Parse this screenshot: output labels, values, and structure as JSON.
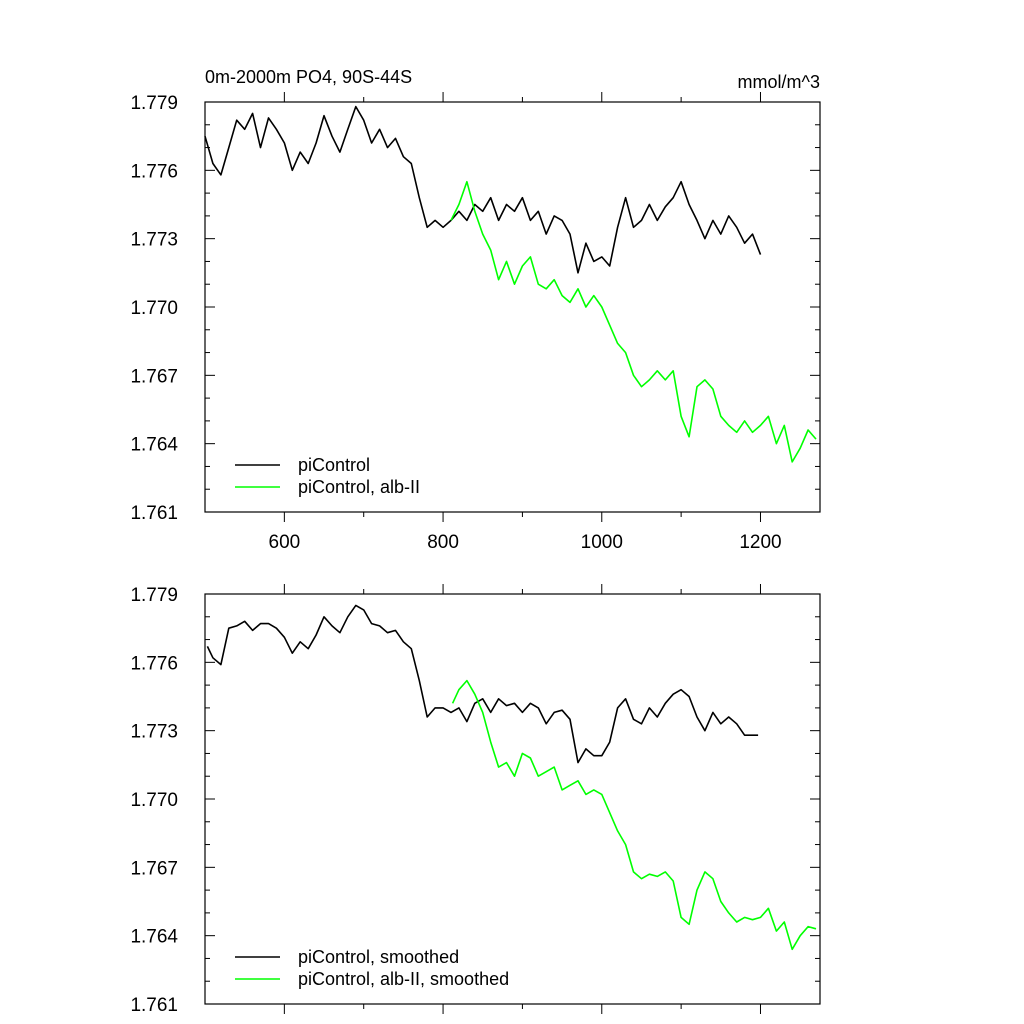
{
  "figure": {
    "title_left": "0m-2000m PO4, 90S-44S",
    "title_right": "mmol/m^3"
  },
  "chart_data": [
    {
      "type": "line",
      "xlim": [
        500,
        1275
      ],
      "ylim": [
        1.761,
        1.779
      ],
      "x_ticks": [
        600,
        800,
        1000,
        1200
      ],
      "x_tick_labels": [
        "600",
        "800",
        "1000",
        "1200"
      ],
      "y_ticks": [
        1.761,
        1.764,
        1.767,
        1.77,
        1.773,
        1.776,
        1.779
      ],
      "y_tick_labels": [
        "1.761",
        "1.764",
        "1.767",
        "1.770",
        "1.773",
        "1.776",
        "1.779"
      ],
      "grid": false,
      "legend_position": "bottom-left",
      "series": [
        {
          "name": "piControl",
          "color": "#000000",
          "points": [
            [
              500,
              1.7775
            ],
            [
              510,
              1.7763
            ],
            [
              520,
              1.7758
            ],
            [
              530,
              1.777
            ],
            [
              540,
              1.7782
            ],
            [
              550,
              1.7778
            ],
            [
              560,
              1.7785
            ],
            [
              570,
              1.777
            ],
            [
              580,
              1.7783
            ],
            [
              590,
              1.7778
            ],
            [
              600,
              1.7772
            ],
            [
              610,
              1.776
            ],
            [
              620,
              1.7768
            ],
            [
              630,
              1.7763
            ],
            [
              640,
              1.7772
            ],
            [
              650,
              1.7784
            ],
            [
              660,
              1.7775
            ],
            [
              670,
              1.7768
            ],
            [
              680,
              1.7778
            ],
            [
              690,
              1.7788
            ],
            [
              700,
              1.7782
            ],
            [
              710,
              1.7772
            ],
            [
              720,
              1.7778
            ],
            [
              730,
              1.777
            ],
            [
              740,
              1.7774
            ],
            [
              750,
              1.7766
            ],
            [
              760,
              1.7763
            ],
            [
              770,
              1.7748
            ],
            [
              780,
              1.7735
            ],
            [
              790,
              1.7738
            ],
            [
              800,
              1.7735
            ],
            [
              810,
              1.7738
            ],
            [
              820,
              1.7742
            ],
            [
              830,
              1.7738
            ],
            [
              840,
              1.7745
            ],
            [
              850,
              1.7742
            ],
            [
              860,
              1.7748
            ],
            [
              870,
              1.7738
            ],
            [
              880,
              1.7745
            ],
            [
              890,
              1.7742
            ],
            [
              900,
              1.7748
            ],
            [
              910,
              1.7738
            ],
            [
              920,
              1.7742
            ],
            [
              930,
              1.7732
            ],
            [
              940,
              1.774
            ],
            [
              950,
              1.7738
            ],
            [
              960,
              1.7732
            ],
            [
              970,
              1.7715
            ],
            [
              980,
              1.7728
            ],
            [
              990,
              1.772
            ],
            [
              1000,
              1.7722
            ],
            [
              1010,
              1.7718
            ],
            [
              1020,
              1.7735
            ],
            [
              1030,
              1.7748
            ],
            [
              1040,
              1.7735
            ],
            [
              1050,
              1.7738
            ],
            [
              1060,
              1.7745
            ],
            [
              1070,
              1.7738
            ],
            [
              1080,
              1.7744
            ],
            [
              1090,
              1.7748
            ],
            [
              1100,
              1.7755
            ],
            [
              1110,
              1.7745
            ],
            [
              1120,
              1.7738
            ],
            [
              1130,
              1.773
            ],
            [
              1140,
              1.7738
            ],
            [
              1150,
              1.7732
            ],
            [
              1160,
              1.774
            ],
            [
              1170,
              1.7735
            ],
            [
              1180,
              1.7728
            ],
            [
              1190,
              1.7732
            ],
            [
              1200,
              1.7723
            ]
          ]
        },
        {
          "name": "piControl, alb-II",
          "color": "#00ff00",
          "points": [
            [
              810,
              1.7738
            ],
            [
              820,
              1.7745
            ],
            [
              830,
              1.7755
            ],
            [
              840,
              1.7742
            ],
            [
              850,
              1.7732
            ],
            [
              860,
              1.7725
            ],
            [
              870,
              1.7712
            ],
            [
              880,
              1.772
            ],
            [
              890,
              1.771
            ],
            [
              900,
              1.7718
            ],
            [
              910,
              1.7722
            ],
            [
              920,
              1.771
            ],
            [
              930,
              1.7708
            ],
            [
              940,
              1.7712
            ],
            [
              950,
              1.7705
            ],
            [
              960,
              1.7702
            ],
            [
              970,
              1.7708
            ],
            [
              980,
              1.77
            ],
            [
              990,
              1.7705
            ],
            [
              1000,
              1.77
            ],
            [
              1010,
              1.7692
            ],
            [
              1020,
              1.7684
            ],
            [
              1030,
              1.768
            ],
            [
              1040,
              1.767
            ],
            [
              1050,
              1.7665
            ],
            [
              1060,
              1.7668
            ],
            [
              1070,
              1.7672
            ],
            [
              1080,
              1.7668
            ],
            [
              1090,
              1.7672
            ],
            [
              1100,
              1.7652
            ],
            [
              1110,
              1.7643
            ],
            [
              1120,
              1.7665
            ],
            [
              1130,
              1.7668
            ],
            [
              1140,
              1.7664
            ],
            [
              1150,
              1.7652
            ],
            [
              1160,
              1.7648
            ],
            [
              1170,
              1.7645
            ],
            [
              1180,
              1.765
            ],
            [
              1190,
              1.7645
            ],
            [
              1200,
              1.7648
            ],
            [
              1210,
              1.7652
            ],
            [
              1220,
              1.764
            ],
            [
              1230,
              1.7648
            ],
            [
              1240,
              1.7632
            ],
            [
              1250,
              1.7638
            ],
            [
              1260,
              1.7646
            ],
            [
              1270,
              1.7642
            ]
          ]
        }
      ]
    },
    {
      "type": "line",
      "xlim": [
        500,
        1275
      ],
      "ylim": [
        1.761,
        1.779
      ],
      "x_ticks": [
        600,
        800,
        1000,
        1200
      ],
      "x_tick_labels": [],
      "y_ticks": [
        1.761,
        1.764,
        1.767,
        1.77,
        1.773,
        1.776,
        1.779
      ],
      "y_tick_labels": [
        "1.761",
        "1.764",
        "1.767",
        "1.770",
        "1.773",
        "1.776",
        "1.779"
      ],
      "grid": false,
      "legend_position": "bottom-left",
      "series": [
        {
          "name": "piControl, smoothed",
          "color": "#000000",
          "points": [
            [
              503,
              1.7767
            ],
            [
              510,
              1.7762
            ],
            [
              520,
              1.7759
            ],
            [
              530,
              1.7775
            ],
            [
              540,
              1.7776
            ],
            [
              550,
              1.7778
            ],
            [
              560,
              1.7774
            ],
            [
              570,
              1.7777
            ],
            [
              580,
              1.7777
            ],
            [
              590,
              1.7775
            ],
            [
              600,
              1.7771
            ],
            [
              610,
              1.7764
            ],
            [
              620,
              1.7769
            ],
            [
              630,
              1.7766
            ],
            [
              640,
              1.7772
            ],
            [
              650,
              1.778
            ],
            [
              660,
              1.7776
            ],
            [
              670,
              1.7773
            ],
            [
              680,
              1.778
            ],
            [
              690,
              1.7785
            ],
            [
              700,
              1.7783
            ],
            [
              710,
              1.7777
            ],
            [
              720,
              1.7776
            ],
            [
              730,
              1.7773
            ],
            [
              740,
              1.7774
            ],
            [
              750,
              1.7769
            ],
            [
              760,
              1.7766
            ],
            [
              770,
              1.7752
            ],
            [
              780,
              1.7736
            ],
            [
              790,
              1.774
            ],
            [
              800,
              1.774
            ],
            [
              810,
              1.7738
            ],
            [
              820,
              1.774
            ],
            [
              830,
              1.7734
            ],
            [
              840,
              1.7742
            ],
            [
              850,
              1.7744
            ],
            [
              860,
              1.7738
            ],
            [
              870,
              1.7744
            ],
            [
              880,
              1.7741
            ],
            [
              890,
              1.7742
            ],
            [
              900,
              1.7738
            ],
            [
              910,
              1.7742
            ],
            [
              920,
              1.774
            ],
            [
              930,
              1.7733
            ],
            [
              940,
              1.7738
            ],
            [
              950,
              1.7739
            ],
            [
              960,
              1.7735
            ],
            [
              970,
              1.7716
            ],
            [
              980,
              1.7722
            ],
            [
              990,
              1.7719
            ],
            [
              1000,
              1.7719
            ],
            [
              1010,
              1.7725
            ],
            [
              1020,
              1.774
            ],
            [
              1030,
              1.7744
            ],
            [
              1040,
              1.7735
            ],
            [
              1050,
              1.7733
            ],
            [
              1060,
              1.774
            ],
            [
              1070,
              1.7736
            ],
            [
              1080,
              1.7742
            ],
            [
              1090,
              1.7746
            ],
            [
              1100,
              1.7748
            ],
            [
              1110,
              1.7745
            ],
            [
              1120,
              1.7736
            ],
            [
              1130,
              1.773
            ],
            [
              1140,
              1.7738
            ],
            [
              1150,
              1.7733
            ],
            [
              1160,
              1.7736
            ],
            [
              1170,
              1.7733
            ],
            [
              1180,
              1.7728
            ],
            [
              1190,
              1.7728
            ],
            [
              1197,
              1.7728
            ]
          ]
        },
        {
          "name": "piControl, alb-II, smoothed",
          "color": "#00ff00",
          "points": [
            [
              812,
              1.7742
            ],
            [
              820,
              1.7748
            ],
            [
              830,
              1.7752
            ],
            [
              840,
              1.7746
            ],
            [
              850,
              1.7738
            ],
            [
              860,
              1.7725
            ],
            [
              870,
              1.7714
            ],
            [
              880,
              1.7716
            ],
            [
              890,
              1.771
            ],
            [
              900,
              1.772
            ],
            [
              910,
              1.7718
            ],
            [
              920,
              1.771
            ],
            [
              930,
              1.7712
            ],
            [
              940,
              1.7714
            ],
            [
              950,
              1.7704
            ],
            [
              960,
              1.7706
            ],
            [
              970,
              1.7708
            ],
            [
              980,
              1.7702
            ],
            [
              990,
              1.7704
            ],
            [
              1000,
              1.7702
            ],
            [
              1010,
              1.7694
            ],
            [
              1020,
              1.7686
            ],
            [
              1030,
              1.768
            ],
            [
              1040,
              1.7668
            ],
            [
              1050,
              1.7665
            ],
            [
              1060,
              1.7667
            ],
            [
              1070,
              1.7666
            ],
            [
              1080,
              1.7668
            ],
            [
              1090,
              1.7664
            ],
            [
              1100,
              1.7648
            ],
            [
              1110,
              1.7645
            ],
            [
              1120,
              1.766
            ],
            [
              1130,
              1.7668
            ],
            [
              1140,
              1.7665
            ],
            [
              1150,
              1.7655
            ],
            [
              1160,
              1.765
            ],
            [
              1170,
              1.7646
            ],
            [
              1180,
              1.7648
            ],
            [
              1190,
              1.7647
            ],
            [
              1200,
              1.7648
            ],
            [
              1210,
              1.7652
            ],
            [
              1220,
              1.7642
            ],
            [
              1230,
              1.7646
            ],
            [
              1240,
              1.7634
            ],
            [
              1250,
              1.764
            ],
            [
              1260,
              1.7644
            ],
            [
              1270,
              1.7643
            ]
          ]
        }
      ]
    }
  ]
}
